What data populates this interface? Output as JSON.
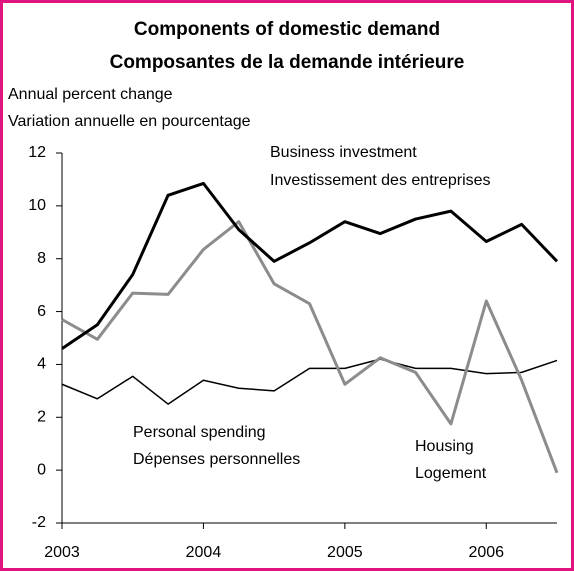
{
  "chart_data": {
    "type": "line",
    "title": [
      "Components of domestic demand",
      "Composantes de la demande intérieure"
    ],
    "ylabel": [
      "Annual percent change",
      "Variation annuelle en pourcentage"
    ],
    "x": [
      2003,
      2003.25,
      2003.5,
      2003.75,
      2004,
      2004.25,
      2004.5,
      2004.75,
      2005,
      2005.25,
      2005.5,
      2005.75,
      2006,
      2006.25,
      2006.5
    ],
    "xlim": [
      2003,
      2006.5
    ],
    "xticks": [
      2003,
      2004,
      2005,
      2006
    ],
    "ylim": [
      -2,
      12
    ],
    "yticks": [
      -2,
      0,
      2,
      4,
      6,
      8,
      10,
      12
    ],
    "series": [
      {
        "name": "Business investment",
        "name_fr": "Investissement des entreprises",
        "color": "#000000",
        "width": 3,
        "values": [
          4.6,
          5.5,
          7.4,
          10.4,
          10.85,
          9.1,
          7.9,
          8.6,
          9.4,
          8.95,
          9.5,
          9.8,
          8.65,
          9.3,
          7.9
        ]
      },
      {
        "name": "Housing",
        "name_fr": "Logement",
        "color": "#8c8c8c",
        "width": 3,
        "values": [
          5.7,
          4.95,
          6.7,
          6.65,
          8.35,
          9.4,
          7.05,
          6.3,
          3.25,
          4.25,
          3.7,
          1.75,
          6.4,
          3.4,
          -0.1
        ]
      },
      {
        "name": "Personal spending",
        "name_fr": "Dépenses personnelles",
        "color": "#000000",
        "width": 1.5,
        "values": [
          3.25,
          2.7,
          3.55,
          2.5,
          3.4,
          3.1,
          3.0,
          3.85,
          3.85,
          4.2,
          3.85,
          3.85,
          3.65,
          3.7,
          4.15
        ]
      }
    ]
  }
}
